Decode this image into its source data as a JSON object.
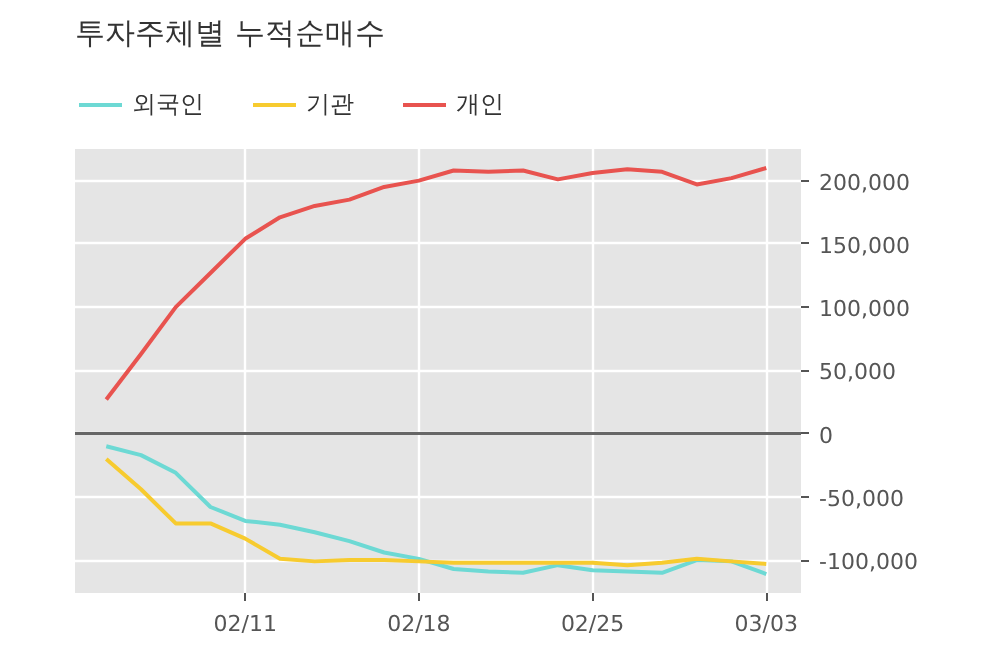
{
  "chart_data": {
    "type": "line",
    "title": "투자주체별 누적순매수",
    "categories": [
      null,
      null,
      null,
      null,
      "02/11",
      null,
      null,
      null,
      null,
      "02/18",
      null,
      null,
      null,
      null,
      "02/25",
      null,
      null,
      null,
      null,
      "03/03"
    ],
    "series": [
      {
        "name": "외국인",
        "color": "#6dd9d4",
        "values": [
          -10000,
          -17000,
          -31000,
          -58000,
          -69000,
          -72000,
          -78000,
          -85000,
          -94000,
          -99000,
          -107000,
          -109000,
          -110000,
          -104000,
          -108000,
          -109000,
          -110000,
          -100000,
          -101000,
          -111000
        ]
      },
      {
        "name": "기관",
        "color": "#f7cb2f",
        "values": [
          -20000,
          -44000,
          -71000,
          -71000,
          -83000,
          -99000,
          -101000,
          -100000,
          -100000,
          -101000,
          -102000,
          -102000,
          -102000,
          -102000,
          -102000,
          -104000,
          -102000,
          -99000,
          -101000,
          -103000
        ]
      },
      {
        "name": "개인",
        "color": "#e8534f",
        "values": [
          27000,
          63000,
          100000,
          127000,
          154000,
          171000,
          180000,
          185000,
          195000,
          200000,
          208000,
          207000,
          208000,
          201000,
          206000,
          209000,
          207000,
          197000,
          202000,
          210000
        ]
      }
    ],
    "ylim": [
      -126000,
      225000
    ],
    "yticks": [
      {
        "value": -100000,
        "label": "-100,000"
      },
      {
        "value": -50000,
        "label": "-50,000"
      },
      {
        "value": 0,
        "label": "0"
      },
      {
        "value": 50000,
        "label": "50,000"
      },
      {
        "value": 100000,
        "label": "100,000"
      },
      {
        "value": 150000,
        "label": "150,000"
      },
      {
        "value": 200000,
        "label": "200,000"
      }
    ],
    "ref_lines": [
      {
        "axis": "y",
        "value": 0,
        "color": "#666666"
      }
    ],
    "grid": true,
    "legend": "top left",
    "marker": "none",
    "line_style": "solid"
  }
}
